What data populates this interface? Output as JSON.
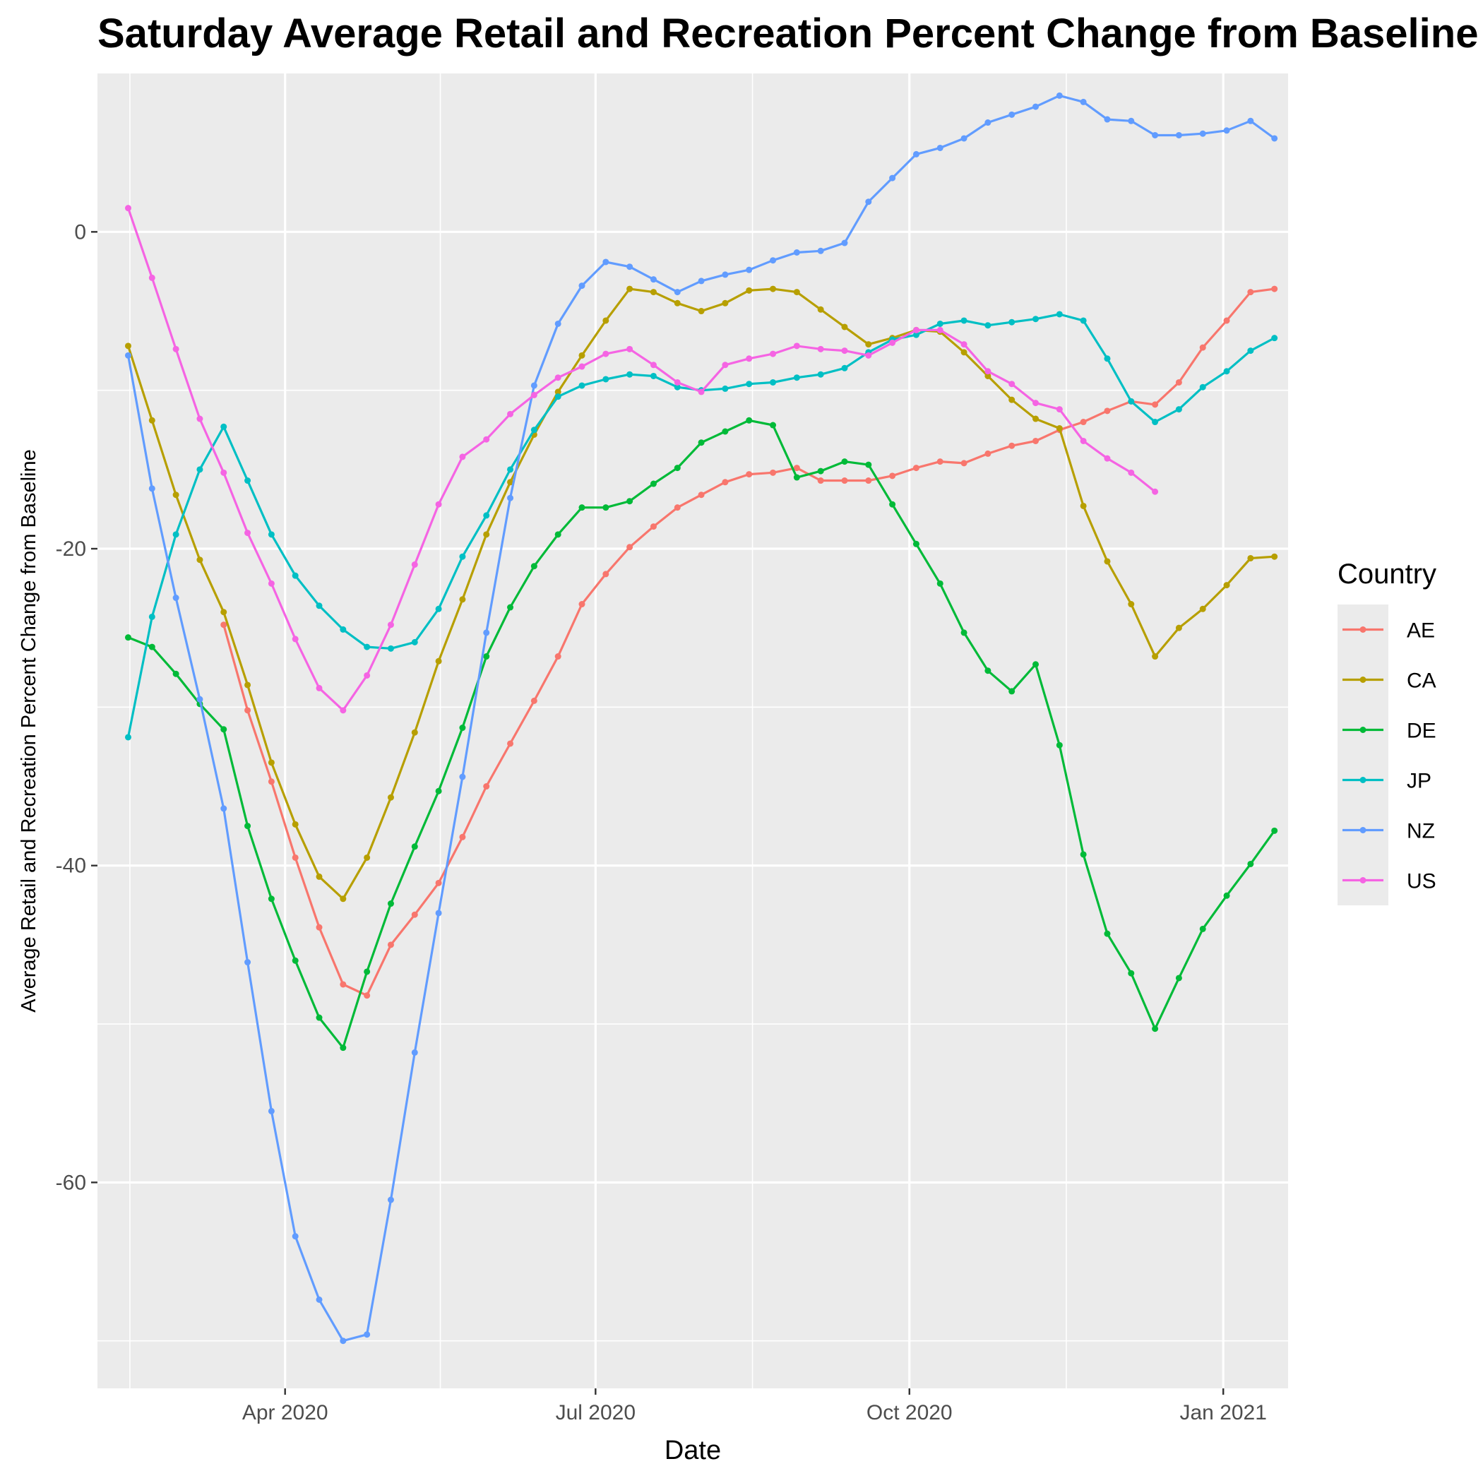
{
  "chart_data": {
    "type": "line",
    "title": "Saturday Average Retail and Recreation Percent Change from Baseline",
    "xlabel": "Date",
    "ylabel": "Average Retail and Recreation Percent Change from Baseline",
    "x_ticks": [
      "2020-04-01",
      "2020-07-01",
      "2020-10-01",
      "2021-01-01"
    ],
    "x_tick_labels": [
      "Apr 2020",
      "Jul 2020",
      "Oct 2020",
      "Jan 2021"
    ],
    "y_ticks": [
      0,
      -20,
      -40,
      -60
    ],
    "ylim": [
      -73,
      10
    ],
    "xlim": [
      "2020-02-06",
      "2021-01-20"
    ],
    "grid": true,
    "legend": {
      "title": "Country",
      "position": "right"
    },
    "x_start": "2020-02-15",
    "x_step_days": 7,
    "series": [
      {
        "name": "AE",
        "color": "#F8766D",
        "start_index": 4,
        "values": [
          -24.8,
          -30.2,
          -34.7,
          -39.5,
          -43.9,
          -47.5,
          -48.2,
          -45.0,
          -43.1,
          -41.1,
          -38.2,
          -35.0,
          -32.3,
          -29.6,
          -26.8,
          -23.5,
          -21.6,
          -19.9,
          -18.6,
          -17.4,
          -16.6,
          -15.8,
          -15.3,
          -15.2,
          -14.9,
          -15.7,
          -15.7,
          -15.7,
          -15.4,
          -14.9,
          -14.5,
          -14.6,
          -14.0,
          -13.5,
          -13.2,
          -12.5,
          -12.0,
          -11.3,
          -10.7,
          -10.9,
          -9.5,
          -7.3,
          -5.6,
          -3.8,
          -3.6
        ]
      },
      {
        "name": "CA",
        "color": "#B79F00",
        "start_index": 0,
        "values": [
          -7.2,
          -11.9,
          -16.6,
          -20.7,
          -24.0,
          -28.6,
          -33.5,
          -37.4,
          -40.7,
          -42.1,
          -39.5,
          -35.7,
          -31.6,
          -27.1,
          -23.2,
          -19.1,
          -15.8,
          -12.8,
          -10.1,
          -7.8,
          -5.6,
          -3.6,
          -3.8,
          -4.5,
          -5.0,
          -4.5,
          -3.7,
          -3.6,
          -3.8,
          -4.9,
          -6.0,
          -7.1,
          -6.7,
          -6.2,
          -6.3,
          -7.6,
          -9.1,
          -10.6,
          -11.8,
          -12.4,
          -17.3,
          -20.8,
          -23.5,
          -26.8,
          -25.0,
          -23.8,
          -22.3,
          -20.6,
          -20.5
        ]
      },
      {
        "name": "DE",
        "color": "#00BA38",
        "start_index": 0,
        "values": [
          -25.6,
          -26.2,
          -27.9,
          -29.8,
          -31.4,
          -37.5,
          -42.1,
          -46.0,
          -49.6,
          -51.5,
          -46.7,
          -42.4,
          -38.8,
          -35.3,
          -31.3,
          -26.8,
          -23.7,
          -21.1,
          -19.1,
          -17.4,
          -17.4,
          -17.0,
          -15.9,
          -14.9,
          -13.3,
          -12.6,
          -11.9,
          -12.2,
          -15.5,
          -15.1,
          -14.5,
          -14.7,
          -17.2,
          -19.7,
          -22.2,
          -25.3,
          -27.7,
          -29.0,
          -27.3,
          -32.4,
          -39.3,
          -44.3,
          -46.8,
          -50.3,
          -47.1,
          -44.0,
          -41.9,
          -39.9,
          -37.8
        ]
      },
      {
        "name": "JP",
        "color": "#00BFC4",
        "start_index": 0,
        "values": [
          -31.9,
          -24.3,
          -19.1,
          -15.0,
          -12.3,
          -15.7,
          -19.1,
          -21.7,
          -23.6,
          -25.1,
          -26.2,
          -26.3,
          -25.9,
          -23.8,
          -20.5,
          -17.9,
          -15.0,
          -12.5,
          -10.4,
          -9.7,
          -9.3,
          -9.0,
          -9.1,
          -9.8,
          -10.0,
          -9.9,
          -9.6,
          -9.5,
          -9.2,
          -9.0,
          -8.6,
          -7.6,
          -6.8,
          -6.5,
          -5.8,
          -5.6,
          -5.9,
          -5.7,
          -5.5,
          -5.2,
          -5.6,
          -8.0,
          -10.7,
          -12.0,
          -11.2,
          -9.8,
          -8.8,
          -7.5,
          -6.7
        ]
      },
      {
        "name": "NZ",
        "color": "#619CFF",
        "start_index": 0,
        "values": [
          -7.8,
          -16.2,
          -23.1,
          -29.5,
          -36.4,
          -46.1,
          -55.5,
          -63.4,
          -67.4,
          -70.0,
          -69.6,
          -61.1,
          -51.8,
          -43.0,
          -34.4,
          -25.3,
          -16.8,
          -9.7,
          -5.8,
          -3.4,
          -1.9,
          -2.2,
          -3.0,
          -3.8,
          -3.1,
          -2.7,
          -2.4,
          -1.8,
          -1.3,
          -1.2,
          -0.7,
          1.9,
          3.4,
          4.9,
          5.3,
          5.9,
          6.9,
          7.4,
          7.9,
          8.6,
          8.2,
          7.1,
          7.0,
          6.1,
          6.1,
          6.2,
          6.4,
          7.0,
          5.9
        ]
      },
      {
        "name": "US",
        "color": "#F564E3",
        "start_index": 0,
        "values": [
          1.5,
          -2.9,
          -7.4,
          -11.8,
          -15.2,
          -19.0,
          -22.2,
          -25.7,
          -28.8,
          -30.2,
          -28.0,
          -24.8,
          -21.0,
          -17.2,
          -14.2,
          -13.1,
          -11.5,
          -10.3,
          -9.2,
          -8.5,
          -7.7,
          -7.4,
          -8.4,
          -9.5,
          -10.1,
          -8.4,
          -8.0,
          -7.7,
          -7.2,
          -7.4,
          -7.5,
          -7.8,
          -7.0,
          -6.2,
          -6.2,
          -7.1,
          -8.8,
          -9.6,
          -10.8,
          -11.2,
          -13.2,
          -14.3,
          -15.2,
          -16.4
        ]
      }
    ]
  }
}
